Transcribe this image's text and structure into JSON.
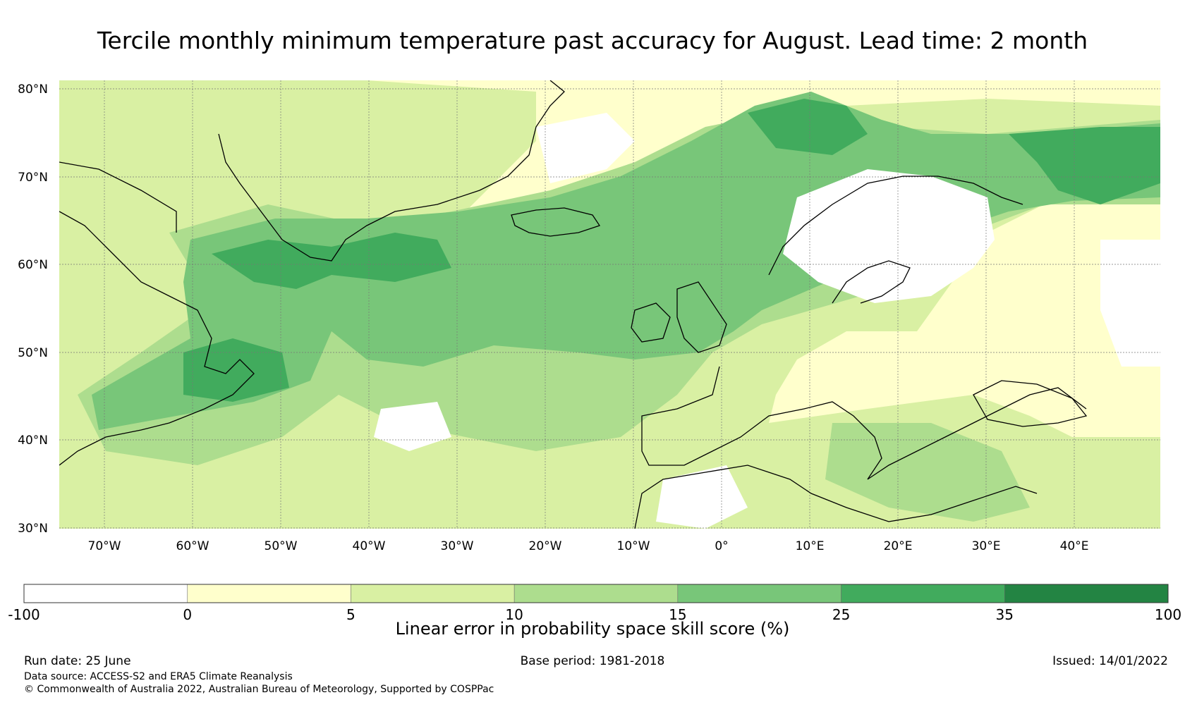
{
  "title": "Tercile monthly minimum temperature past accuracy for August. Lead time: 2 month",
  "map": {
    "lat_labels": [
      {
        "text": "80°N",
        "lat": 80
      },
      {
        "text": "70°N",
        "lat": 70
      },
      {
        "text": "60°N",
        "lat": 60
      },
      {
        "text": "50°N",
        "lat": 50
      },
      {
        "text": "40°N",
        "lat": 40
      },
      {
        "text": "30°N",
        "lat": 30
      }
    ],
    "lon_labels": [
      {
        "text": "70°W",
        "lon": -70
      },
      {
        "text": "60°W",
        "lon": -60
      },
      {
        "text": "50°W",
        "lon": -50
      },
      {
        "text": "40°W",
        "lon": -40
      },
      {
        "text": "30°W",
        "lon": -30
      },
      {
        "text": "20°W",
        "lon": -20
      },
      {
        "text": "10°W",
        "lon": -10
      },
      {
        "text": "0°",
        "lon": 0
      },
      {
        "text": "10°E",
        "lon": 10
      },
      {
        "text": "20°E",
        "lon": 20
      },
      {
        "text": "30°E",
        "lon": 30
      },
      {
        "text": "40°E",
        "lon": 40
      }
    ],
    "extent": {
      "lon_min": -75,
      "lon_max": 50,
      "lat_min": 29.5,
      "lat_max": 80.5
    }
  },
  "colorbar": {
    "bounds": [
      "-100",
      "0",
      "5",
      "10",
      "15",
      "25",
      "35",
      "100"
    ],
    "colors": [
      "#ffffff",
      "#ffffcc",
      "#d9f0a3",
      "#addd8e",
      "#78c679",
      "#41ab5d",
      "#238443"
    ],
    "label": "Linear error in probability space skill score (%)"
  },
  "footer": {
    "run_date": "Run date: 25 June",
    "base_period": "Base period: 1981-2018",
    "issued": "Issued: 14/01/2022",
    "data_source": "Data source: ACCESS-S2 and ERA5 Climate Reanalysis",
    "copyright": "© Commonwealth of Australia 2022, Australian Bureau of Meteorology, Supported by COSPPac"
  }
}
